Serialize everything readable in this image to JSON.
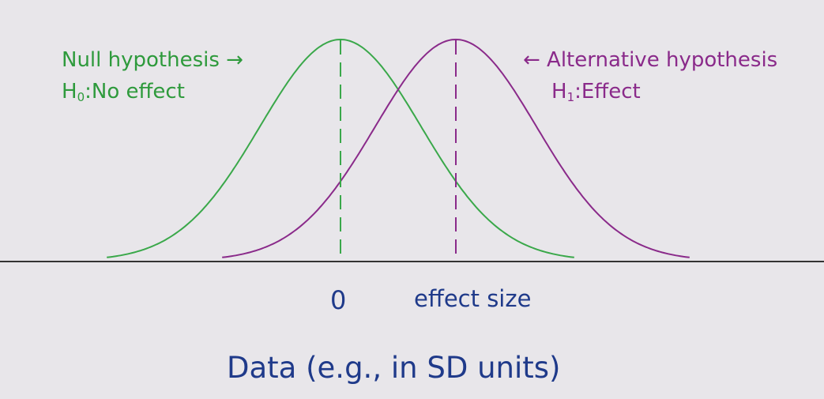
{
  "diagram": {
    "null_hypothesis": {
      "label": "Null hypothesis →",
      "h_letter": "H",
      "h_subscript": "0",
      "h_text": ":No effect",
      "color": "#3aa84a",
      "mean": 0,
      "sd": 1
    },
    "alternative_hypothesis": {
      "label": "← Alternative hypothesis",
      "h_letter": "H",
      "h_subscript": "1",
      "h_text": ":Effect",
      "color": "#8a2a8a",
      "mean": 1,
      "sd": 1
    },
    "tick_zero_label": "0",
    "tick_effect_label": "effect size",
    "x_axis_label": "Data (e.g., in SD units)",
    "axis_color": "#333333",
    "text_color": "#1f3a8a"
  }
}
